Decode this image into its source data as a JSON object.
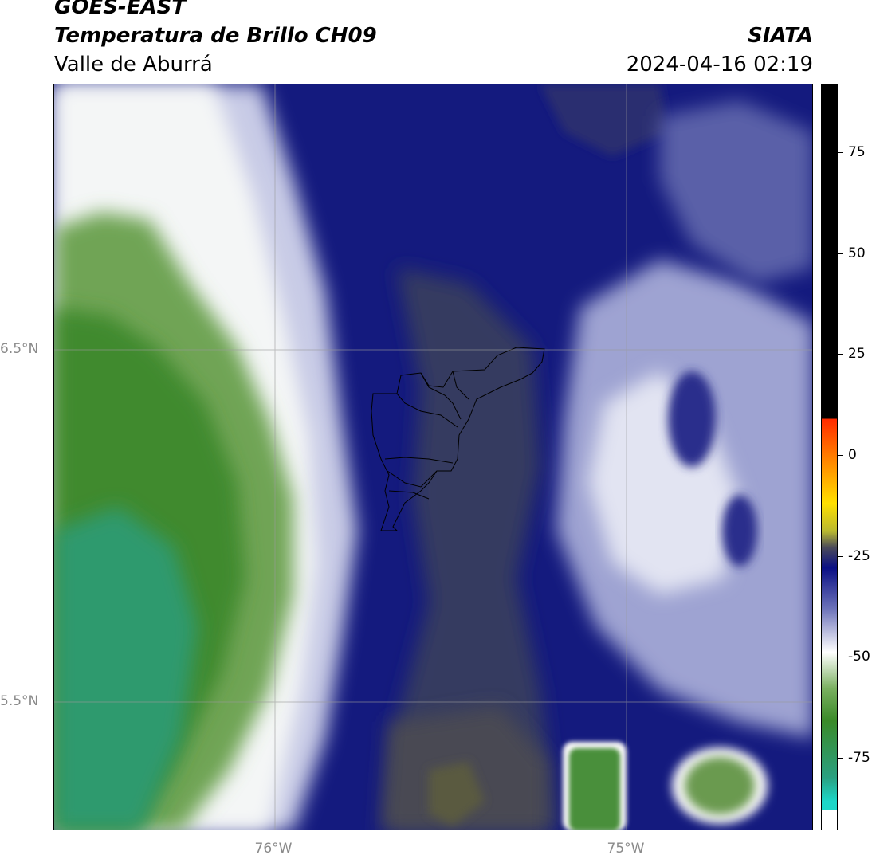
{
  "header": {
    "satellite": "GOES-EAST",
    "product": "Temperatura de Brillo CH09",
    "region": "Valle de Aburrá",
    "organization": "SIATA",
    "timestamp": "2024-04-16 02:19"
  },
  "map": {
    "lat_labels": [
      "6.5°N",
      "5.5°N"
    ],
    "lon_labels": [
      "76°W",
      "75°W"
    ],
    "extent": {
      "lon": [
        -76.6,
        -74.45
      ],
      "lat": [
        5.14,
        7.25
      ]
    },
    "gridlines": true
  },
  "colorbar": {
    "ticks": [
      {
        "value": 75,
        "label": "75"
      },
      {
        "value": 50,
        "label": "50"
      },
      {
        "value": 25,
        "label": "25"
      },
      {
        "value": 0,
        "label": "0"
      },
      {
        "value": -25,
        "label": "-25"
      },
      {
        "value": -50,
        "label": "-50"
      },
      {
        "value": -75,
        "label": "-75"
      }
    ],
    "range": [
      -93,
      92
    ],
    "colors": {
      "warm": "#000000",
      "hot": "#ff2a00",
      "cold_blue": "#0a0f85",
      "green": "#3a8a28",
      "teal": "#1cd6c8"
    }
  }
}
